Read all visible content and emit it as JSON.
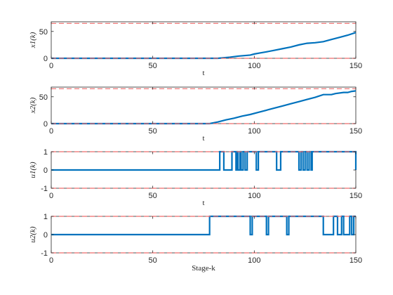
{
  "colors": {
    "series": "#0072BD",
    "bound": "#EE6A6A",
    "axis": "#262626"
  },
  "chart_data": [
    {
      "type": "line",
      "ylabel": "x1(k)",
      "xlabel": "t",
      "xlim": [
        0,
        150
      ],
      "ylim": [
        0,
        68
      ],
      "xticks": [
        "0",
        "50",
        "100",
        "150"
      ],
      "yticks": [
        {
          "v": 0,
          "label": "0"
        },
        {
          "v": 50,
          "label": "50"
        }
      ],
      "bounds": [
        0,
        65
      ],
      "grid": false,
      "series": [
        {
          "points": [
            [
              0,
              0
            ],
            [
              82,
              0
            ],
            [
              85,
              1
            ],
            [
              88,
              2
            ],
            [
              90,
              3
            ],
            [
              92,
              4
            ],
            [
              95,
              5
            ],
            [
              98,
              6
            ],
            [
              100,
              8
            ],
            [
              103,
              10
            ],
            [
              106,
              12
            ],
            [
              110,
              15
            ],
            [
              114,
              18
            ],
            [
              118,
              21
            ],
            [
              122,
              25
            ],
            [
              126,
              28
            ],
            [
              130,
              29
            ],
            [
              134,
              31
            ],
            [
              138,
              35
            ],
            [
              142,
              39
            ],
            [
              146,
              43
            ],
            [
              150,
              48
            ]
          ]
        }
      ]
    },
    {
      "type": "line",
      "ylabel": "x2(k)",
      "xlabel": "t",
      "xlim": [
        0,
        150
      ],
      "ylim": [
        0,
        68
      ],
      "xticks": [
        "0",
        "50",
        "100",
        "150"
      ],
      "yticks": [
        {
          "v": 0,
          "label": "0"
        },
        {
          "v": 50,
          "label": "50"
        }
      ],
      "bounds": [
        0,
        65
      ],
      "grid": false,
      "series": [
        {
          "points": [
            [
              0,
              0
            ],
            [
              78,
              0
            ],
            [
              82,
              3
            ],
            [
              86,
              7
            ],
            [
              90,
              10
            ],
            [
              94,
              14
            ],
            [
              98,
              17
            ],
            [
              102,
              21
            ],
            [
              106,
              25
            ],
            [
              110,
              29
            ],
            [
              114,
              33
            ],
            [
              118,
              37
            ],
            [
              122,
              41
            ],
            [
              126,
              45
            ],
            [
              130,
              49
            ],
            [
              134,
              54
            ],
            [
              138,
              54
            ],
            [
              140,
              56
            ],
            [
              144,
              58
            ],
            [
              146,
              58
            ],
            [
              148,
              60
            ],
            [
              150,
              61
            ]
          ]
        }
      ]
    },
    {
      "type": "line",
      "ylabel": "u1(k)",
      "xlabel": "t",
      "xlim": [
        0,
        150
      ],
      "ylim": [
        -1,
        1
      ],
      "xticks": [
        "0",
        "50",
        "100",
        "150"
      ],
      "yticks": [
        {
          "v": 1,
          "label": "1"
        },
        {
          "v": 0,
          "label": "0"
        },
        {
          "v": -1,
          "label": "-1"
        }
      ],
      "bounds": [
        -1,
        1
      ],
      "grid": false,
      "series": [
        {
          "steps": [
            [
              0,
              0
            ],
            [
              83,
              1
            ],
            [
              85,
              0
            ],
            [
              89,
              1
            ],
            [
              91,
              0
            ],
            [
              91.5,
              1
            ],
            [
              92,
              0
            ],
            [
              93,
              1
            ],
            [
              93.5,
              0
            ],
            [
              94.5,
              1
            ],
            [
              95.5,
              0
            ],
            [
              96.5,
              1
            ],
            [
              101,
              0
            ],
            [
              102,
              1
            ],
            [
              111,
              0
            ],
            [
              113,
              1
            ],
            [
              122,
              0
            ],
            [
              123,
              1
            ],
            [
              124,
              0
            ],
            [
              125,
              1
            ],
            [
              126,
              0
            ],
            [
              127,
              1
            ],
            [
              128,
              0
            ],
            [
              128.5,
              1
            ],
            [
              150,
              0
            ]
          ],
          "end": 150
        }
      ]
    },
    {
      "type": "line",
      "ylabel": "u2(k)",
      "xlabel": "Stage-k",
      "xlim": [
        0,
        150
      ],
      "ylim": [
        -1,
        1
      ],
      "xticks": [
        "0",
        "50",
        "100",
        "150"
      ],
      "yticks": [
        {
          "v": 1,
          "label": "1"
        },
        {
          "v": 0,
          "label": "0"
        },
        {
          "v": -1,
          "label": "-1"
        }
      ],
      "bounds": [
        -1,
        1
      ],
      "grid": false,
      "series": [
        {
          "steps": [
            [
              0,
              0
            ],
            [
              78,
              1
            ],
            [
              98,
              0
            ],
            [
              99,
              1
            ],
            [
              106,
              0
            ],
            [
              107,
              1
            ],
            [
              116,
              0
            ],
            [
              117,
              1
            ],
            [
              134,
              0
            ],
            [
              139,
              1
            ],
            [
              141,
              0
            ],
            [
              143,
              1
            ],
            [
              144,
              0
            ],
            [
              147,
              1
            ],
            [
              148,
              0
            ],
            [
              149,
              1
            ]
          ],
          "end": 150
        }
      ]
    }
  ]
}
